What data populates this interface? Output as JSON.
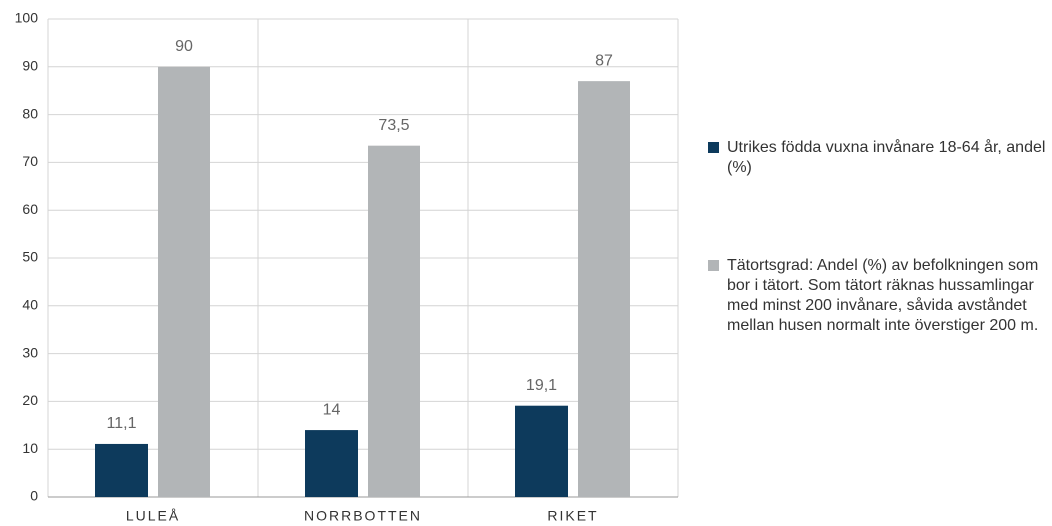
{
  "chart_data": {
    "type": "bar",
    "categories": [
      "LULEÅ",
      "NORRBOTTEN",
      "RIKET"
    ],
    "series": [
      {
        "name": "Utrikes födda vuxna invånare 18-64 år, andel (%)",
        "color": "#0d3a5c",
        "values": [
          11.1,
          14,
          19.1
        ],
        "value_labels": [
          "11,1",
          "14",
          "19,1"
        ]
      },
      {
        "name": "Tätortsgrad: Andel (%) av befolkningen som bor i tätort. Som tätort räknas hussamlingar med minst 200 invånare, såvida avståndet mellan husen normalt inte överstiger 200 m.",
        "color": "#b2b5b7",
        "values": [
          90,
          73.5,
          87
        ],
        "value_labels": [
          "90",
          "73,5",
          "87"
        ]
      }
    ],
    "ylim": [
      0,
      100
    ],
    "yticks": [
      0,
      10,
      20,
      30,
      40,
      50,
      60,
      70,
      80,
      90,
      100
    ],
    "grid": true,
    "legend": "right"
  }
}
